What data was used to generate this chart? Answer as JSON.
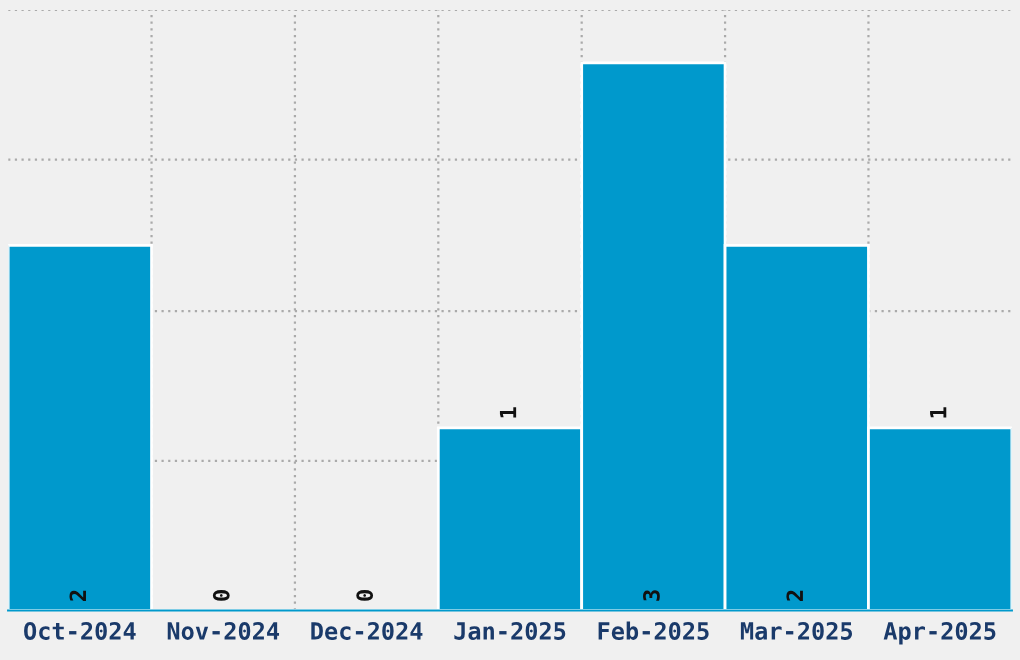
{
  "chart_data": {
    "type": "bar",
    "categories": [
      "Oct-2024",
      "Nov-2024",
      "Dec-2024",
      "Jan-2025",
      "Feb-2025",
      "Mar-2025",
      "Apr-2025"
    ],
    "values": [
      2,
      0,
      0,
      1,
      3,
      2,
      1
    ],
    "color": "#0099cc",
    "ylim": [
      0,
      3.29
    ],
    "yticks": [
      {
        "value": 0,
        "label": null
      },
      {
        "value": 0.82,
        "label": null
      },
      {
        "value": 1.64,
        "label": null
      },
      {
        "value": 2.47,
        "label": null
      },
      {
        "value": 3.29,
        "label": null
      }
    ],
    "grid": true,
    "data_labels": true,
    "tick_labels": "x"
  }
}
